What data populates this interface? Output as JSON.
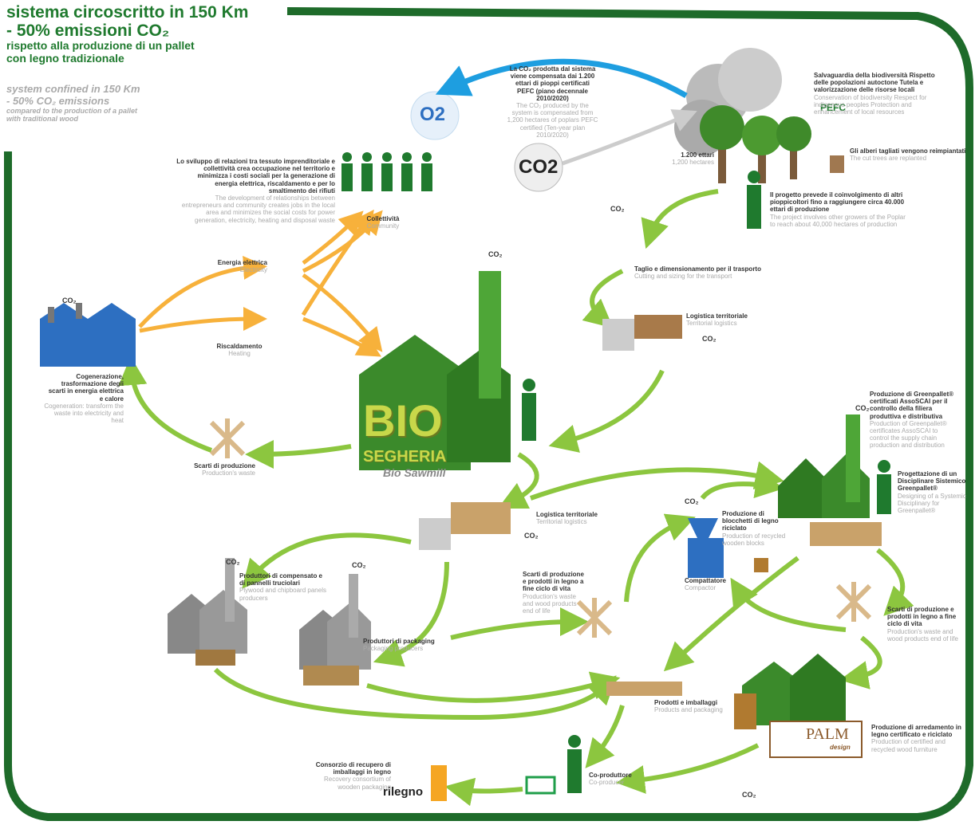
{
  "header": {
    "title_lines": [
      "sistema circoscritto in 150 Km",
      "- 50% emissioni CO₂",
      "rispetto alla produzione di un pallet",
      "con legno tradizionale"
    ],
    "en_lines": [
      "system confined in 150 Km",
      "- 50% CO₂ emissions",
      "compared to the production of a pallet",
      "with traditional wood"
    ]
  },
  "badges": {
    "o2": "O2",
    "co2": "CO2",
    "co2_small": "CO₂",
    "pefc": "PEFC",
    "palm": "PALM",
    "palm_sub": "design",
    "rilegno": "rilegno",
    "bio": "BIO",
    "segheria": "SEGHERIA",
    "sawmill": "Bio Sawmill"
  },
  "nodes": [
    {
      "it": "Lo sviluppo di relazioni tra tessuto imprenditoriale e collettività crea occupazione nel territorio e minimizza i costi sociali per la generazione di energia elettrica, riscaldamento e per lo smaltimento dei rifiuti",
      "en": "The development of relationships between entrepreneurs and community creates jobs in the local area and minimizes the social costs for power generation, electricity, heating and disposal waste"
    },
    {
      "it": "Collettività",
      "en": "Community"
    },
    {
      "it": "Energia elettrica",
      "en": "Electricity"
    },
    {
      "it": "Riscaldamento",
      "en": "Heating"
    },
    {
      "it": "Cogenerazione, trasformazione degli scarti in energia elettrica e calore",
      "en": "Cogeneration: transform the waste into electricity and heat"
    },
    {
      "it": "Scarti di produzione",
      "en": "Production's waste"
    },
    {
      "it": "La CO₂ prodotta dal sistema viene compensata dai 1.200 ettari di pioppi certificati PEFC (piano decennale 2010/2020)",
      "en": "The CO₂ produced by the system is compensated from 1,200 hectares of poplars PEFC certified (Ten-year plan 2010/2020)"
    },
    {
      "it": "Salvaguardia della biodiversità Rispetto delle popolazioni autoctone Tutela e valorizzazione delle risorse locali",
      "en": "Conservation of biodiversity Respect for indigenous peoples Protection and enhancement of local resources"
    },
    {
      "it": "1.200 ettari",
      "en": "1,200 hectares"
    },
    {
      "it": "Gli alberi tagliati vengono reimpiantati",
      "en": "The cut trees are replanted"
    },
    {
      "it": "Il progetto prevede il coinvolgimento di altri pioppicoltori fino a raggiungere circa 40.000 ettari di produzione",
      "en": "The project involves other growers of the Poplar to reach about 40,000 hectares of production"
    },
    {
      "it": "Taglio e dimensionamento per il trasporto",
      "en": "Cutting and sizing for the transport"
    },
    {
      "it": "Logistica territoriale",
      "en": "Territorial logistics"
    },
    {
      "it": "Produzione di Greenpallet® certificati AssoSCAI per il controllo della filiera produttiva e distributiva",
      "en": "Production of Greenpallet® certificates AssoSCAI to control the supply chain production and distribution"
    },
    {
      "it": "Progettazione di un Disciplinare Sistemico Greenpallet®",
      "en": "Designing of a Systemic Disciplinary for Greenpallet®"
    },
    {
      "it": "Logistica territoriale",
      "en": "Territorial logistics"
    },
    {
      "it": "Produzione di blocchetti di legno riciclato",
      "en": "Production of recycled wooden blocks"
    },
    {
      "it": "Compattatore",
      "en": "Compactor"
    },
    {
      "it": "Scarti di produzione e prodotti in legno a fine ciclo di vita",
      "en": "Production's waste and wood products end of life"
    },
    {
      "it": "Produttori di compensato e di pannelli truciolari",
      "en": "Plywood and chipboard panels producers"
    },
    {
      "it": "Produttori di packaging",
      "en": "Packaging producers"
    },
    {
      "it": "Scarti di produzione e prodotti in legno a fine ciclo di vita",
      "en": "Production's waste and wood products end of life"
    },
    {
      "it": "Prodotti e imballaggi",
      "en": "Products and packaging"
    },
    {
      "it": "Produzione di arredamento in legno certificato e riciclato",
      "en": "Production of certified and recycled wood furniture"
    },
    {
      "it": "Co-produttore",
      "en": "Co-producer"
    },
    {
      "it": "Consorzio di recupero di imballaggi in legno",
      "en": "Recovery consortium of wooden packaging"
    }
  ]
}
